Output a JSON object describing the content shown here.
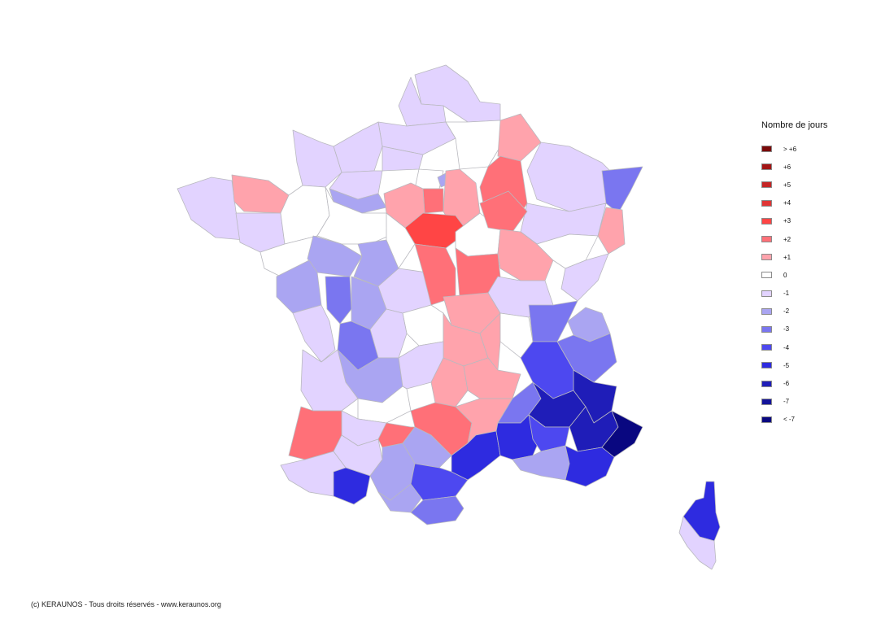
{
  "colors": {
    "gt6": "#7a0a0a",
    "p6": "#a31515",
    "p5": "#c42525",
    "p4": "#e03535",
    "p3": "#ff4545",
    "p2": "#ff7078",
    "p1": "#ffa3ac",
    "zero": "#ffffff",
    "m1": "#e2d3ff",
    "m2": "#aaa5f2",
    "m3": "#7a76f0",
    "m4": "#4d48f0",
    "m5": "#2e2be0",
    "m6": "#1f1db8",
    "m7": "#13139a",
    "lt7": "#090780",
    "border": "#b9b9bf"
  },
  "legend": {
    "title": "Nombre de jours",
    "items": [
      {
        "label": "> +6",
        "key": "gt6"
      },
      {
        "label": "+6",
        "key": "p6"
      },
      {
        "label": "+5",
        "key": "p5"
      },
      {
        "label": "+4",
        "key": "p4"
      },
      {
        "label": "+3",
        "key": "p3"
      },
      {
        "label": "+2",
        "key": "p2"
      },
      {
        "label": "+1",
        "key": "p1"
      },
      {
        "label": "0",
        "key": "zero"
      },
      {
        "label": "-1",
        "key": "m1"
      },
      {
        "label": "-2",
        "key": "m2"
      },
      {
        "label": "-3",
        "key": "m3"
      },
      {
        "label": "-4",
        "key": "m4"
      },
      {
        "label": "-5",
        "key": "m5"
      },
      {
        "label": "-6",
        "key": "m6"
      },
      {
        "label": "-7",
        "key": "m7"
      },
      {
        "label": "< -7",
        "key": "lt7"
      }
    ]
  },
  "footer": {
    "credit": "(c) KERAUNOS - Tous droits réservés - www.keraunos.org"
  }
}
